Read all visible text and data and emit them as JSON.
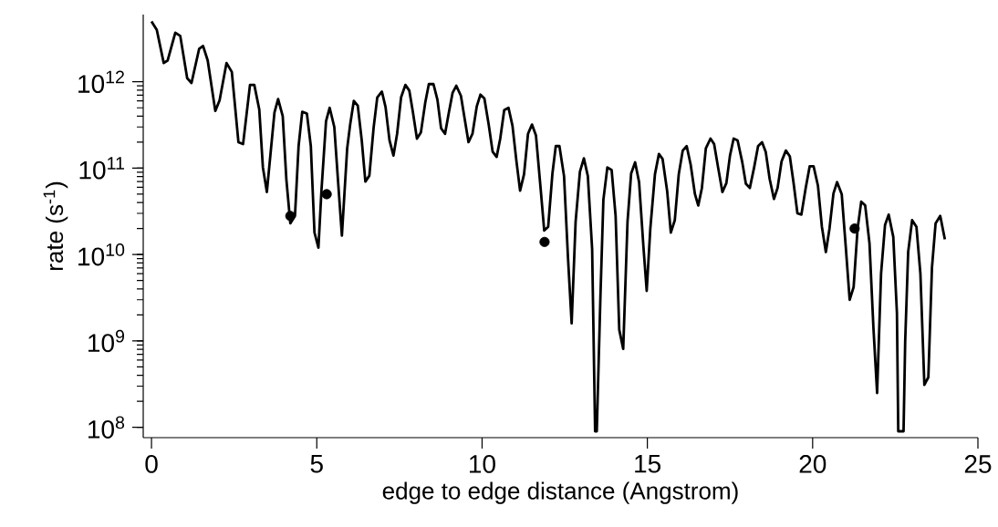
{
  "chart_data": {
    "type": "line",
    "xlabel": "edge to edge distance (Angstrom)",
    "ylabel": "rate (s$^{-1}$)",
    "log": "y",
    "grid": false,
    "xlim": [
      -0.25,
      25
    ],
    "ylim": [
      76000000.0,
      6000000000000.0
    ],
    "xticks": [
      0,
      5,
      10,
      15,
      20,
      25
    ],
    "yticks": [
      {
        "value": 100000000.0,
        "label": "10$^{8}$"
      },
      {
        "value": 1000000000.0,
        "label": "10$^{9}$"
      },
      {
        "value": 10000000000.0,
        "label": "10$^{10}$"
      },
      {
        "value": 100000000000.0,
        "label": "10$^{11}$"
      },
      {
        "value": 1000000000000.0,
        "label": "10$^{12}$"
      }
    ],
    "series": [
      {
        "color": "#000000",
        "marker": "none",
        "line_style": "solid",
        "x": [
          0,
          0.16,
          0.37,
          0.49,
          0.72,
          0.87,
          1.08,
          1.21,
          1.44,
          1.56,
          1.7,
          1.93,
          2.06,
          2.27,
          2.43,
          2.63,
          2.77,
          2.98,
          3.11,
          3.26,
          3.37,
          3.49,
          3.72,
          3.83,
          3.97,
          4.08,
          4.2,
          4.34,
          4.45,
          4.56,
          4.7,
          4.82,
          4.93,
          5.05,
          5.14,
          5.28,
          5.39,
          5.53,
          5.64,
          5.76,
          5.92,
          6.01,
          6.12,
          6.24,
          6.36,
          6.47,
          6.59,
          6.72,
          6.83,
          6.97,
          7.08,
          7.2,
          7.32,
          7.43,
          7.55,
          7.68,
          7.8,
          7.91,
          8.03,
          8.15,
          8.28,
          8.39,
          8.53,
          8.65,
          8.76,
          8.88,
          8.99,
          9.11,
          9.22,
          9.36,
          9.48,
          9.59,
          9.71,
          9.84,
          9.95,
          10.07,
          10.2,
          10.32,
          10.44,
          10.55,
          10.67,
          10.8,
          10.92,
          11.04,
          11.15,
          11.27,
          11.39,
          11.51,
          11.63,
          11.77,
          11.88,
          12.0,
          12.13,
          12.23,
          12.34,
          12.48,
          12.6,
          12.71,
          12.83,
          12.96,
          13.08,
          13.2,
          13.33,
          13.42,
          13.47,
          13.58,
          13.67,
          13.79,
          13.92,
          14.04,
          14.15,
          14.27,
          14.4,
          14.51,
          14.63,
          14.75,
          14.88,
          14.98,
          15.09,
          15.23,
          15.35,
          15.46,
          15.6,
          15.71,
          15.83,
          15.95,
          16.07,
          16.19,
          16.31,
          16.44,
          16.54,
          16.65,
          16.77,
          16.91,
          17.02,
          17.14,
          17.27,
          17.39,
          17.5,
          17.61,
          17.73,
          17.87,
          17.98,
          18.1,
          18.23,
          18.35,
          18.47,
          18.58,
          18.7,
          18.83,
          18.94,
          19.06,
          19.19,
          19.31,
          19.42,
          19.54,
          19.66,
          19.79,
          19.91,
          20.03,
          20.16,
          20.28,
          20.4,
          20.51,
          20.63,
          20.74,
          20.88,
          21.0,
          21.12,
          21.24,
          21.36,
          21.47,
          21.59,
          21.72,
          21.84,
          21.95,
          22.07,
          22.19,
          22.3,
          22.44,
          22.55,
          22.59,
          22.75,
          22.8,
          22.89,
          23.01,
          23.14,
          23.26,
          23.38,
          23.5,
          23.61,
          23.72,
          23.86,
          24.0
        ],
        "values": [
          5000000000000.0,
          4000000000000.0,
          1650000000000.0,
          1770000000000.0,
          3700000000000.0,
          3400000000000.0,
          1100000000000.0,
          970000000000.0,
          2400000000000.0,
          2600000000000.0,
          1770000000000.0,
          460000000000.0,
          610000000000.0,
          1650000000000.0,
          1300000000000.0,
          200000000000.0,
          190000000000.0,
          920000000000.0,
          920000000000.0,
          480000000000.0,
          102000000000.0,
          53000000000.0,
          440000000000.0,
          630000000000.0,
          400000000000.0,
          74000000000.0,
          23000000000.0,
          28000000000.0,
          180000000000.0,
          450000000000.0,
          430000000000.0,
          180000000000.0,
          18000000000.0,
          12000000000.0,
          54000000000.0,
          350000000000.0,
          500000000000.0,
          300000000000.0,
          74000000000.0,
          16600000000.0,
          170000000000.0,
          320000000000.0,
          600000000000.0,
          530000000000.0,
          210000000000.0,
          70000000000.0,
          82000000000.0,
          296000000000.0,
          660000000000.0,
          770000000000.0,
          510000000000.0,
          210000000000.0,
          140000000000.0,
          250000000000.0,
          660000000000.0,
          920000000000.0,
          790000000000.0,
          440000000000.0,
          220000000000.0,
          260000000000.0,
          570000000000.0,
          940000000000.0,
          940000000000.0,
          620000000000.0,
          290000000000.0,
          250000000000.0,
          430000000000.0,
          750000000000.0,
          900000000000.0,
          690000000000.0,
          360000000000.0,
          200000000000.0,
          250000000000.0,
          520000000000.0,
          710000000000.0,
          640000000000.0,
          320000000000.0,
          155000000000.0,
          135000000000.0,
          220000000000.0,
          470000000000.0,
          500000000000.0,
          310000000000.0,
          120000000000.0,
          55000000000.0,
          85000000000.0,
          250000000000.0,
          320000000000.0,
          240000000000.0,
          59000000000.0,
          19000000000.0,
          21000000000.0,
          88000000000.0,
          180000000000.0,
          180000000000.0,
          81000000000.0,
          9100000000.0,
          1600000000.0,
          24000000000.0,
          91000000000.0,
          130000000000.0,
          81000000000.0,
          11500000000.0,
          90000000.0,
          90000000.0,
          3200000000.0,
          43000000000.0,
          102000000000.0,
          95000000000.0,
          28000000000.0,
          1350000000.0,
          810000000.0,
          24000000000.0,
          87000000000.0,
          117000000000.0,
          69000000000.0,
          12500000000.0,
          3800000000.0,
          20000000000.0,
          85000000000.0,
          146000000000.0,
          128000000000.0,
          54000000000.0,
          18000000000.0,
          25000000000.0,
          85000000000.0,
          160000000000.0,
          180000000000.0,
          110000000000.0,
          50000000000.0,
          37000000000.0,
          59000000000.0,
          170000000000.0,
          220000000000.0,
          190000000000.0,
          102000000000.0,
          53000000000.0,
          67000000000.0,
          140000000000.0,
          220000000000.0,
          210000000000.0,
          118000000000.0,
          66000000000.0,
          59000000000.0,
          102000000000.0,
          180000000000.0,
          200000000000.0,
          155000000000.0,
          75000000000.0,
          44000000000.0,
          59000000000.0,
          120000000000.0,
          160000000000.0,
          137000000000.0,
          69000000000.0,
          30000000000.0,
          29000000000.0,
          59000000000.0,
          105000000000.0,
          105000000000.0,
          63000000000.0,
          21000000000.0,
          10700000000.0,
          20000000000.0,
          51000000000.0,
          69000000000.0,
          50000000000.0,
          12600000000.0,
          3000000000.0,
          4200000000.0,
          20000000000.0,
          41000000000.0,
          37000000000.0,
          13500000000.0,
          1400000000.0,
          250000000.0,
          6000000000.0,
          22000000000.0,
          29000000000.0,
          16000000000.0,
          2100000000.0,
          90000000.0,
          90000000.0,
          1000000000.0,
          10700000000.0,
          25000000000.0,
          21000000000.0,
          6000000000.0,
          310000000.0,
          380000000.0,
          7100000000.0,
          23000000000.0,
          28000000000.0,
          15000000000.0
        ]
      },
      {
        "type": "scatter",
        "color": "#000000",
        "marker": "circle",
        "x": [
          4.2,
          5.3,
          11.89,
          21.27
        ],
        "values": [
          28000000000.0,
          50000000000.0,
          14000000000.0,
          20000000000.0
        ]
      }
    ]
  }
}
